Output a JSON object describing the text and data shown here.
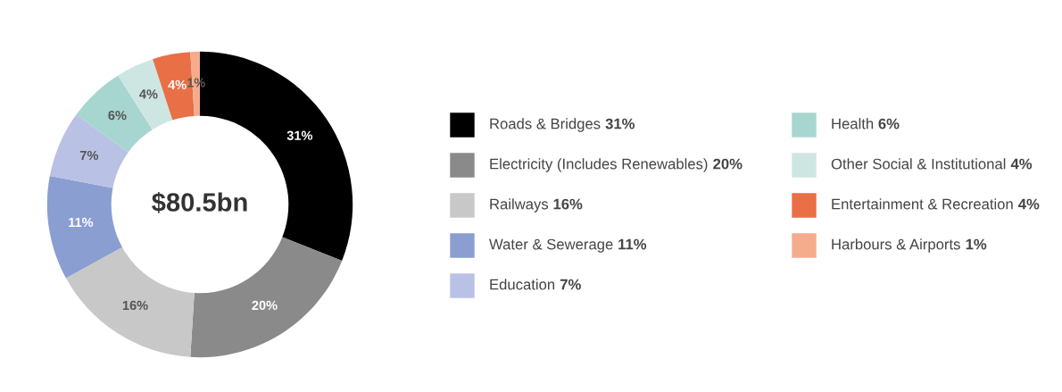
{
  "chart_data": {
    "type": "donut",
    "categories": [
      "Roads & Bridges",
      "Electricity (Includes Renewables)",
      "Railways",
      "Water & Sewerage",
      "Education",
      "Health",
      "Other Social & Institutional",
      "Entertainment & Recreation",
      "Harbours & Airports"
    ],
    "values": [
      31,
      20,
      16,
      11,
      7,
      6,
      4,
      4,
      1
    ],
    "colors": [
      "#000000",
      "#8a8a8a",
      "#c8c8c8",
      "#8b9ed1",
      "#b9c1e5",
      "#a7d6d0",
      "#cee6e2",
      "#e96f46",
      "#f5ac8d"
    ],
    "value_labels": [
      "31%",
      "20%",
      "16%",
      "11%",
      "7%",
      "6%",
      "4%",
      "4%",
      "1%"
    ],
    "annotations": [
      "$80.5bn"
    ],
    "legend": "right"
  }
}
